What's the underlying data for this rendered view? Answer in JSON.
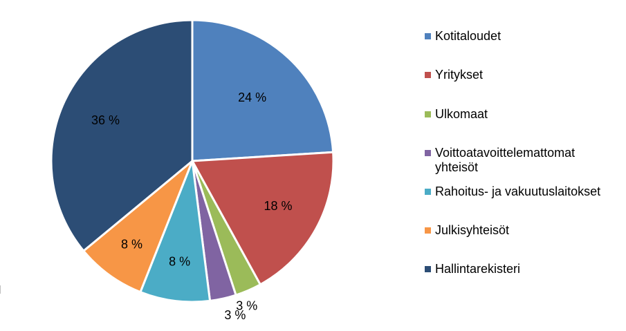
{
  "chart_data": {
    "type": "pie",
    "title": "",
    "slices": [
      {
        "name": "Kotitaloudet",
        "value": 24,
        "label": "24 %",
        "color": "#4F81BD"
      },
      {
        "name": "Yritykset",
        "value": 18,
        "label": "18 %",
        "color": "#C0504D"
      },
      {
        "name": "Ulkomaat",
        "value": 3,
        "label": "3 %",
        "color": "#9BBB59"
      },
      {
        "name": "Voittoatavoittelemattomat yhteisöt",
        "value": 3,
        "label": "3 %",
        "color": "#8064A2"
      },
      {
        "name": "Rahoitus- ja vakuutuslaitokset",
        "value": 8,
        "label": "8 %",
        "color": "#4BACC6"
      },
      {
        "name": "Julkisyhteisöt",
        "value": 8,
        "label": "8 %",
        "color": "#F79646"
      },
      {
        "name": "Hallintarekisteri",
        "value": 36,
        "label": "36 %",
        "color": "#2C4D75"
      }
    ],
    "legend_position": "right"
  }
}
